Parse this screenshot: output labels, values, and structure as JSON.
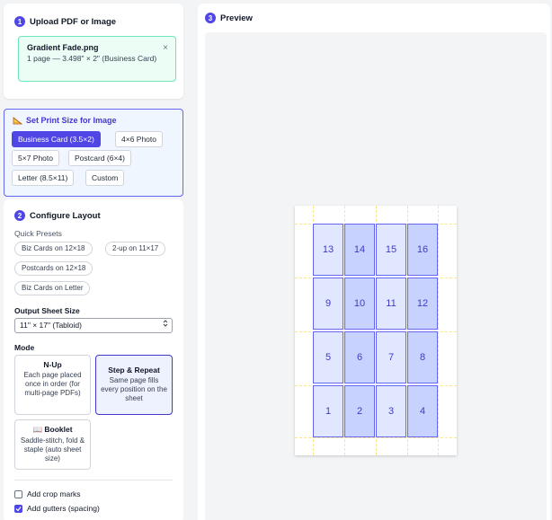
{
  "upload": {
    "step": "1",
    "title": "Upload PDF or Image",
    "file_name": "Gradient Fade.png",
    "file_meta": "1 page — 3.498\" × 2\" (Business Card)",
    "close": "×"
  },
  "print_size": {
    "title": "Set Print Size for Image",
    "icon": "ruler-icon",
    "options": [
      "Business Card (3.5×2)",
      "4×6 Photo",
      "5×7 Photo",
      "Postcard (6×4)",
      "Letter (8.5×11)",
      "Custom"
    ],
    "selected": "Business Card (3.5×2)"
  },
  "layout": {
    "step": "2",
    "title": "Configure Layout",
    "quick_presets_label": "Quick Presets",
    "presets": [
      "Biz Cards on 12×18",
      "2-up on 11×17",
      "Postcards on 12×18",
      "Biz Cards on Letter"
    ],
    "sheet_size_label": "Output Sheet Size",
    "sheet_size_value": "11\" × 17\" (Tabloid)",
    "mode_label": "Mode",
    "modes": [
      {
        "title": "N-Up",
        "desc": "Each page placed once in order (for multi-page PDFs)"
      },
      {
        "title": "Step & Repeat",
        "desc": "Same page fills every position on the sheet"
      },
      {
        "title": "📖 Booklet",
        "desc": "Saddle-stitch, fold & staple (auto sheet size)"
      }
    ],
    "selected_mode": "Step & Repeat",
    "crop_marks_label": "Add crop marks",
    "crop_marks_checked": false,
    "gutters_label": "Add gutters (spacing)",
    "gutters_checked": true
  },
  "preview": {
    "step": "3",
    "title": "Preview",
    "rows": [
      [
        "13",
        "14",
        "15",
        "16"
      ],
      [
        "9",
        "10",
        "11",
        "12"
      ],
      [
        "5",
        "6",
        "7",
        "8"
      ],
      [
        "1",
        "2",
        "3",
        "4"
      ]
    ]
  },
  "colors": {
    "accent": "#4f46e5",
    "file_card_bg": "#ecfdf5",
    "card_fill": "#e0e7ff",
    "card_fill_alt": "#c7d2fe"
  }
}
